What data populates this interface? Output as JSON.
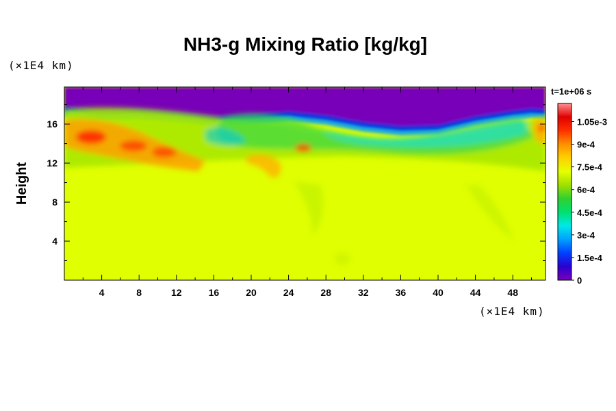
{
  "chart_data": {
    "type": "heatmap",
    "title": "NH3-g Mixing Ratio [kg/kg]",
    "ylabel": "Height",
    "x_unit_label": "(×1E4 km)",
    "y_unit_label": "(×1E4 km)",
    "time_label": "t=1e+06 s",
    "xlim": [
      0,
      51.5
    ],
    "ylim": [
      0,
      19.8
    ],
    "x_ticks": [
      "4",
      "8",
      "12",
      "16",
      "20",
      "24",
      "28",
      "32",
      "36",
      "40",
      "44",
      "48"
    ],
    "x_tick_values": [
      4,
      8,
      12,
      16,
      20,
      24,
      28,
      32,
      36,
      40,
      44,
      48
    ],
    "x_minor_ticks": [
      2,
      6,
      10,
      14,
      18,
      22,
      26,
      30,
      34,
      38,
      42,
      46,
      50
    ],
    "y_ticks": [
      "4",
      "8",
      "12",
      "16"
    ],
    "y_tick_values": [
      4,
      8,
      12,
      16
    ],
    "y_minor_ticks": [
      2,
      6,
      10,
      14,
      18
    ],
    "colorbar": {
      "min": 0,
      "max": 0.00117,
      "tick_labels": [
        "0",
        "1.5e-4",
        "3e-4",
        "4.5e-4",
        "6e-4",
        "7.5e-4",
        "9e-4",
        "1.05e-3"
      ],
      "tick_values": [
        0,
        0.00015,
        0.0003,
        0.00045,
        0.0006,
        0.00075,
        0.0009,
        0.00105
      ],
      "colors": [
        "#7a00b8",
        "#2a00d0",
        "#0040ff",
        "#00a0ff",
        "#00e8e8",
        "#00e070",
        "#30d030",
        "#a0e000",
        "#e6ff00",
        "#ffd000",
        "#ff9000",
        "#ff3000",
        "#e00000",
        "#ff9090"
      ]
    },
    "field_summary": {
      "lower_region_value": 0.00079,
      "upper_region_value": 0,
      "cloud_top_height": [
        17.8,
        17.4,
        17.5,
        17.2,
        16.8,
        17.0,
        17.3,
        16.9,
        16.2,
        15.8,
        15.9,
        16.8,
        17.4,
        17.6,
        17.5
      ],
      "cloud_top_x": [
        0,
        4,
        8,
        12,
        16,
        20,
        24,
        28,
        32,
        36,
        40,
        44,
        48,
        50,
        51.5
      ],
      "max_value": 0.00105,
      "max_location": [
        3,
        14.8
      ]
    }
  }
}
